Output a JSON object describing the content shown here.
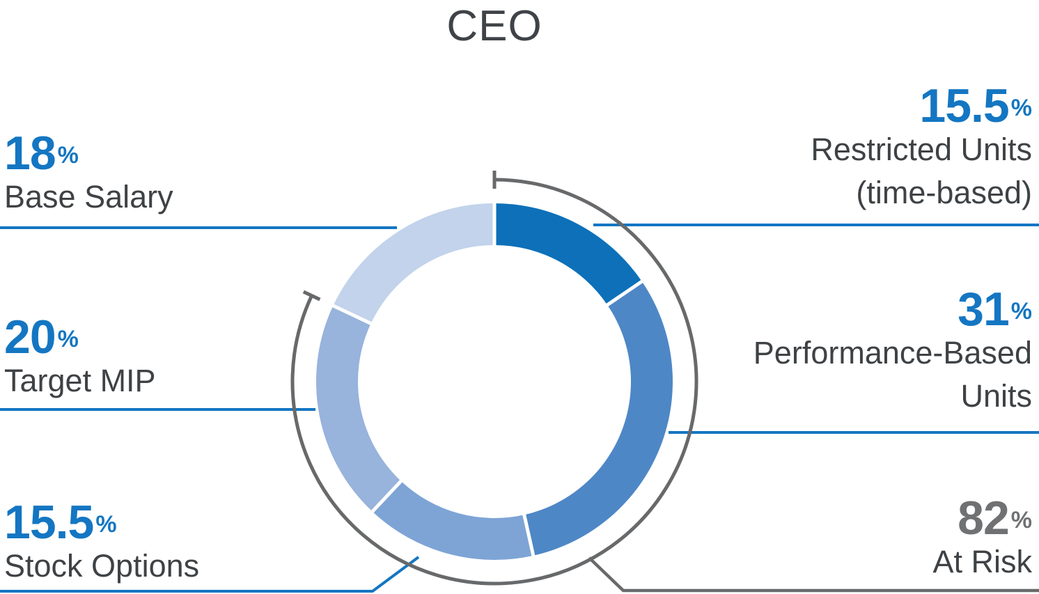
{
  "title": "CEO",
  "chart_data": {
    "type": "donut",
    "title": "CEO",
    "start_angle_deg": 0,
    "direction": "clockwise",
    "units": "%",
    "segments": [
      {
        "name": "restricted-units",
        "label": "Restricted Units (time-based)",
        "value": 15.5,
        "color": "#0d70b9"
      },
      {
        "name": "performance-units",
        "label": "Performance-Based Units",
        "value": 31,
        "color": "#4e87c6"
      },
      {
        "name": "stock-options",
        "label": "Stock Options",
        "value": 15.5,
        "color": "#7ea4d6"
      },
      {
        "name": "target-mip",
        "label": "Target MIP",
        "value": 20,
        "color": "#98b3dc"
      },
      {
        "name": "base-salary",
        "label": "Base Salary",
        "value": 18,
        "color": "#c2d3eb"
      }
    ],
    "annotation_arc": {
      "label": "At Risk",
      "value": 82,
      "color": "#67696b"
    },
    "legend_position": "callouts"
  },
  "colors": {
    "blue_text": "#1476c2",
    "blue_line": "#1476c2",
    "gray_line": "#67696b",
    "gray_value": "#6f7173",
    "label_text": "#3f4245",
    "gap_white": "#ffffff"
  },
  "callouts": {
    "base_salary": {
      "value": "18",
      "pct": "%",
      "lines": [
        "Base Salary"
      ]
    },
    "target_mip": {
      "value": "20",
      "pct": "%",
      "lines": [
        "Target MIP"
      ]
    },
    "stock_options": {
      "value": "15.5",
      "pct": "%",
      "lines": [
        "Stock Options"
      ]
    },
    "restricted_units": {
      "value": "15.5",
      "pct": "%",
      "lines": [
        "Restricted Units",
        "(time-based)"
      ]
    },
    "performance_units": {
      "value": "31",
      "pct": "%",
      "lines": [
        "Performance-Based",
        "Units"
      ]
    },
    "at_risk": {
      "value": "82",
      "pct": "%",
      "lines": [
        "At Risk"
      ]
    }
  }
}
